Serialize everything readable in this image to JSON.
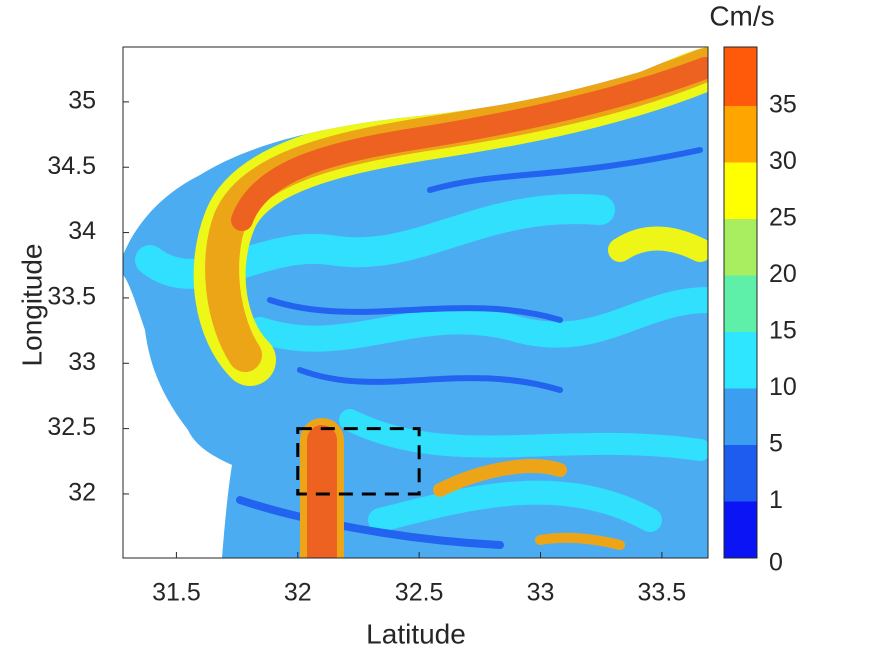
{
  "chart_data": {
    "type": "heatmap",
    "xlabel": "Latitude",
    "ylabel": "Longitude",
    "xlim": [
      31.28,
      33.69
    ],
    "ylim": [
      31.51,
      35.42
    ],
    "xticks": [
      31.5,
      32,
      32.5,
      33,
      33.5
    ],
    "yticks": [
      32,
      32.5,
      33,
      33.5,
      34,
      34.5,
      35
    ],
    "box": {
      "x": [
        32,
        32.5
      ],
      "y": [
        32,
        32.5
      ]
    },
    "colorbar": {
      "label": "Cm/s",
      "levels": [
        0,
        1,
        5,
        10,
        15,
        20,
        25,
        30,
        35
      ],
      "colors": [
        "#0a14f5",
        "#1e5cf0",
        "#3c9ef0",
        "#2ee6ff",
        "#5ef0a8",
        "#a8ee60",
        "#ffff00",
        "#ffa500",
        "#ff5a0a"
      ]
    }
  }
}
